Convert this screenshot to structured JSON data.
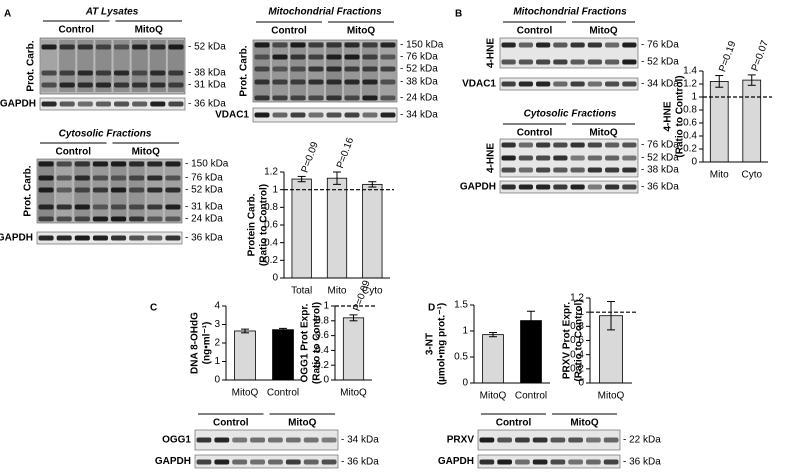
{
  "panel_labels": [
    "A",
    "B",
    "C",
    "D"
  ],
  "blots": [
    {
      "title": "AT Lysates",
      "groups": [
        "Control",
        "MitoQ"
      ],
      "rows": [
        {
          "label": "Prot. Carb.",
          "markers": [
            "- 52 kDa",
            "- 38 kDa",
            "- 31 kDa"
          ]
        },
        {
          "label": "GAPDH",
          "markers": [
            "- 36 kDa"
          ]
        }
      ]
    },
    {
      "title": "Mitochondrial Fractions",
      "groups": [
        "Control",
        "MitoQ"
      ],
      "rows": [
        {
          "label": "Prot. Carb.",
          "markers": [
            "- 150 kDa",
            "- 76 kDa",
            "- 52 kDa",
            "- 38 kDa",
            "- 24 kDa"
          ]
        },
        {
          "label": "VDAC1",
          "markers": [
            "- 34 kDa"
          ]
        }
      ]
    },
    {
      "title": "Cytosolic Fractions",
      "groups": [
        "Control",
        "MitoQ"
      ],
      "rows": [
        {
          "label": "Prot. Carb.",
          "markers": [
            "- 150 kDa",
            "- 76 kDa",
            "- 52 kDa",
            "- 31 kDa",
            "- 24 kDa"
          ]
        },
        {
          "label": "GAPDH",
          "markers": [
            "- 36 kDa"
          ]
        }
      ]
    },
    {
      "title": "Mitochondrial Fractions",
      "groups": [
        "Control",
        "MitoQ"
      ],
      "rows": [
        {
          "label": "4-HNE",
          "markers": [
            "- 76 kDa",
            "- 52 kDa"
          ]
        },
        {
          "label": "VDAC1",
          "markers": [
            "- 34 kDa"
          ]
        }
      ]
    },
    {
      "title": "Cytosolic Fractions",
      "groups": [
        "Control",
        "MitoQ"
      ],
      "rows": [
        {
          "label": "4-HNE",
          "markers": [
            "- 76 kDa",
            "- 52 kDa",
            "- 38 kDa"
          ]
        },
        {
          "label": "GAPDH",
          "markers": [
            "- 36 kDa"
          ]
        }
      ]
    },
    {
      "groups": [
        "Control",
        "MitoQ"
      ],
      "rows": [
        {
          "label": "OGG1",
          "markers": [
            "- 34 kDa"
          ]
        },
        {
          "label": "GAPDH",
          "markers": [
            "- 36 kDa"
          ]
        }
      ]
    },
    {
      "groups": [
        "Control",
        "MitoQ"
      ],
      "rows": [
        {
          "label": "PRXV",
          "markers": [
            "- 22 kDa"
          ]
        },
        {
          "label": "GAPDH",
          "markers": [
            "- 36 kDa"
          ]
        }
      ]
    }
  ],
  "chart_data": [
    {
      "type": "bar",
      "ylabel": [
        "Protein Carb.",
        "(Ratio to Control)"
      ],
      "categories": [
        "Total",
        "Mito",
        "Cyto"
      ],
      "values": [
        1.12,
        1.13,
        1.06
      ],
      "errors": [
        0.03,
        0.07,
        0.03
      ],
      "colors": [
        "#d9d9d9",
        "#d9d9d9",
        "#d9d9d9"
      ],
      "p_values": [
        "P=0.09",
        "P=0.16",
        null
      ],
      "reference_line": 1,
      "ylim": [
        0,
        1.2
      ],
      "yticks": [
        0,
        0.2,
        0.4,
        0.6,
        0.8,
        1,
        1.2
      ]
    },
    {
      "type": "bar",
      "ylabel": [
        "4-HNE",
        "(Ratio to Control)"
      ],
      "categories": [
        "Mito",
        "Cyto"
      ],
      "values": [
        1.24,
        1.26
      ],
      "errors": [
        0.09,
        0.08
      ],
      "colors": [
        "#d9d9d9",
        "#d9d9d9"
      ],
      "p_values": [
        "P=0.19",
        "P=0.07"
      ],
      "reference_line": 1,
      "ylim": [
        0,
        1.4
      ],
      "yticks": [
        0,
        0.2,
        0.4,
        0.6,
        0.8,
        1,
        1.2,
        1.4
      ]
    },
    {
      "type": "bar",
      "ylabel": [
        "DNA 8-OHdG",
        "(ng•ml⁻¹)"
      ],
      "categories": [
        "MitoQ",
        "Control"
      ],
      "values": [
        2.65,
        2.72
      ],
      "errors": [
        0.1,
        0.07
      ],
      "colors": [
        "#d9d9d9",
        "#000000"
      ],
      "ylim": [
        0,
        4
      ],
      "yticks": [
        0,
        1,
        2,
        3,
        4
      ]
    },
    {
      "type": "bar",
      "ylabel": [
        "OGG1 Prot Expr.",
        "(Ratio to Control)"
      ],
      "categories": [
        "MitoQ"
      ],
      "values": [
        0.84
      ],
      "errors": [
        0.04
      ],
      "colors": [
        "#d9d9d9"
      ],
      "p_values": [
        "P=0.09"
      ],
      "reference_line": 1,
      "ylim": [
        0,
        1
      ],
      "yticks": [
        0,
        0.2,
        0.4,
        0.6,
        0.8,
        1
      ]
    },
    {
      "type": "bar",
      "ylabel": [
        "3-NT",
        "(µmol•mg prot.⁻¹)"
      ],
      "categories": [
        "MitoQ",
        "Control"
      ],
      "values": [
        0.93,
        1.2
      ],
      "errors": [
        0.04,
        0.18
      ],
      "colors": [
        "#d9d9d9",
        "#000000"
      ],
      "ylim": [
        0,
        1.5
      ],
      "yticks": [
        0,
        0.5,
        1,
        1.5
      ]
    },
    {
      "type": "bar",
      "ylabel": [
        "PRXV Prot Expr.",
        "(Ratio to Control)"
      ],
      "categories": [
        "MitoQ"
      ],
      "values": [
        0.95
      ],
      "errors": [
        0.2
      ],
      "colors": [
        "#d9d9d9"
      ],
      "reference_line": 1,
      "ylim": [
        0,
        1.2
      ],
      "yticks": [
        0,
        0.2,
        0.4,
        0.6,
        0.8,
        1,
        1.2
      ]
    }
  ]
}
